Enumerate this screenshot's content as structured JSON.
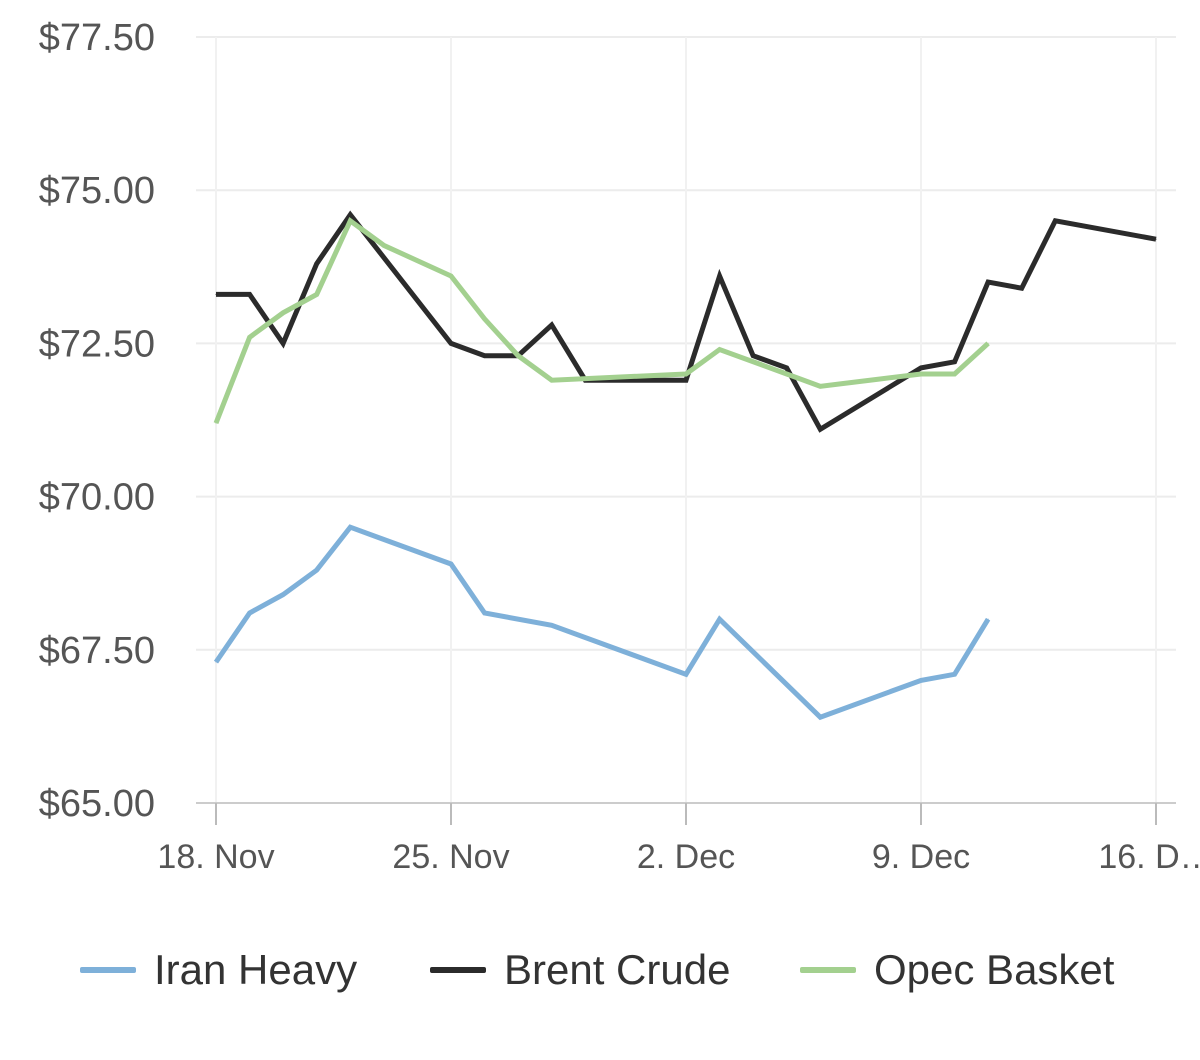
{
  "chart_data": {
    "type": "line",
    "title": "",
    "xlabel": "",
    "ylabel": "",
    "ylim": [
      65,
      77.5
    ],
    "yticks": [
      {
        "value": 65.0,
        "label": "$65.00"
      },
      {
        "value": 67.5,
        "label": "$67.50"
      },
      {
        "value": 70.0,
        "label": "$70.00"
      },
      {
        "value": 72.5,
        "label": "$72.50"
      },
      {
        "value": 75.0,
        "label": "$75.00"
      },
      {
        "value": 77.5,
        "label": "$77.50"
      }
    ],
    "xlim": [
      "2018-11-18",
      "2018-12-16"
    ],
    "xticks": [
      {
        "value": "2018-11-18",
        "label": "18. Nov"
      },
      {
        "value": "2018-11-25",
        "label": "25. Nov"
      },
      {
        "value": "2018-12-02",
        "label": "2. Dec"
      },
      {
        "value": "2018-12-09",
        "label": "9. Dec"
      },
      {
        "value": "2018-12-16",
        "label": "16. D…"
      }
    ],
    "grid": true,
    "legend_position": "bottom",
    "series": [
      {
        "name": "Iran Heavy",
        "color": "#7eb0d9",
        "points": [
          [
            "2018-11-18",
            67.3
          ],
          [
            "2018-11-19",
            68.1
          ],
          [
            "2018-11-20",
            68.4
          ],
          [
            "2018-11-21",
            68.8
          ],
          [
            "2018-11-22",
            69.5
          ],
          [
            "2018-11-25",
            68.9
          ],
          [
            "2018-11-26",
            68.1
          ],
          [
            "2018-11-28",
            67.9
          ],
          [
            "2018-12-02",
            67.1
          ],
          [
            "2018-12-03",
            68.0
          ],
          [
            "2018-12-06",
            66.4
          ],
          [
            "2018-12-09",
            67.0
          ],
          [
            "2018-12-10",
            67.1
          ],
          [
            "2018-12-11",
            68.0
          ]
        ]
      },
      {
        "name": "Brent Crude",
        "color": "#2b2b2b",
        "points": [
          [
            "2018-11-18",
            73.3
          ],
          [
            "2018-11-19",
            73.3
          ],
          [
            "2018-11-20",
            72.5
          ],
          [
            "2018-11-21",
            73.8
          ],
          [
            "2018-11-22",
            74.6
          ],
          [
            "2018-11-25",
            72.5
          ],
          [
            "2018-11-26",
            72.3
          ],
          [
            "2018-11-27",
            72.3
          ],
          [
            "2018-11-28",
            72.8
          ],
          [
            "2018-11-29",
            71.9
          ],
          [
            "2018-12-02",
            71.9
          ],
          [
            "2018-12-03",
            73.6
          ],
          [
            "2018-12-04",
            72.3
          ],
          [
            "2018-12-05",
            72.1
          ],
          [
            "2018-12-06",
            71.1
          ],
          [
            "2018-12-09",
            72.1
          ],
          [
            "2018-12-10",
            72.2
          ],
          [
            "2018-12-11",
            73.5
          ],
          [
            "2018-12-12",
            73.4
          ],
          [
            "2018-12-13",
            74.5
          ],
          [
            "2018-12-16",
            74.2
          ]
        ]
      },
      {
        "name": "Opec Basket",
        "color": "#a3d08f",
        "points": [
          [
            "2018-11-18",
            71.2
          ],
          [
            "2018-11-19",
            72.6
          ],
          [
            "2018-11-20",
            73.0
          ],
          [
            "2018-11-21",
            73.3
          ],
          [
            "2018-11-22",
            74.5
          ],
          [
            "2018-11-23",
            74.1
          ],
          [
            "2018-11-25",
            73.6
          ],
          [
            "2018-11-26",
            72.9
          ],
          [
            "2018-11-27",
            72.3
          ],
          [
            "2018-11-28",
            71.9
          ],
          [
            "2018-12-02",
            72.0
          ],
          [
            "2018-12-03",
            72.4
          ],
          [
            "2018-12-05",
            72.0
          ],
          [
            "2018-12-06",
            71.8
          ],
          [
            "2018-12-09",
            72.0
          ],
          [
            "2018-12-10",
            72.0
          ],
          [
            "2018-12-11",
            72.5
          ]
        ]
      }
    ]
  }
}
